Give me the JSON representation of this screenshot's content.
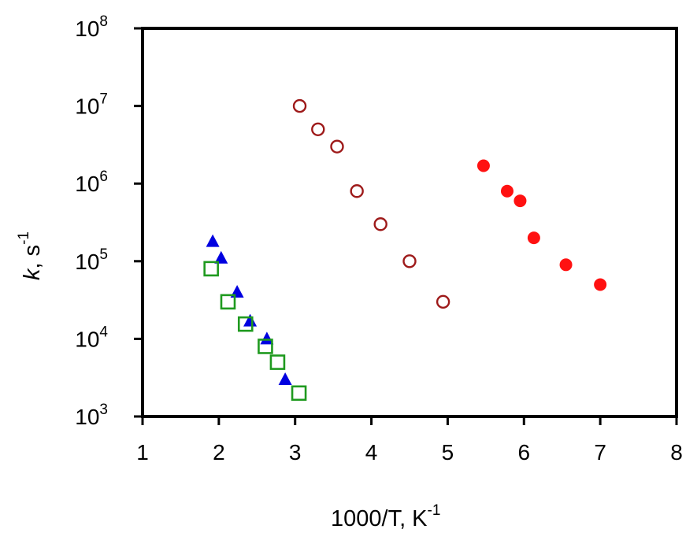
{
  "chart_data": {
    "type": "scatter",
    "title": "",
    "xlabel": "1000/T,  K",
    "xlabel_sup": "-1",
    "ylabel_var": "k",
    "ylabel_rest": ",   s",
    "ylabel_sup": "-1",
    "xlim": [
      1,
      8
    ],
    "ylim": [
      1000,
      100000000
    ],
    "yscale": "log",
    "grid": false,
    "legend": "none",
    "x_ticks": [
      "1",
      "2",
      "3",
      "4",
      "5",
      "6",
      "7",
      "8"
    ],
    "y_ticks": [
      {
        "base": "10",
        "exp": "3"
      },
      {
        "base": "10",
        "exp": "4"
      },
      {
        "base": "10",
        "exp": "5"
      },
      {
        "base": "10",
        "exp": "6"
      },
      {
        "base": "10",
        "exp": "7"
      },
      {
        "base": "10",
        "exp": "8"
      }
    ],
    "series": [
      {
        "marker": "triangle-filled",
        "color": "#0000e0",
        "points": [
          {
            "x": 1.92,
            "y": 180000
          },
          {
            "x": 2.03,
            "y": 110000
          },
          {
            "x": 2.24,
            "y": 40000
          },
          {
            "x": 2.41,
            "y": 17000
          },
          {
            "x": 2.63,
            "y": 10000
          },
          {
            "x": 2.87,
            "y": 3000
          }
        ]
      },
      {
        "marker": "square-open",
        "color": "#1f9a1f",
        "points": [
          {
            "x": 1.9,
            "y": 80000
          },
          {
            "x": 2.12,
            "y": 30000
          },
          {
            "x": 2.35,
            "y": 15500
          },
          {
            "x": 2.61,
            "y": 8000
          },
          {
            "x": 2.77,
            "y": 5000
          },
          {
            "x": 3.05,
            "y": 2000
          }
        ]
      },
      {
        "marker": "circle-open",
        "color": "#9e1a1a",
        "points": [
          {
            "x": 3.06,
            "y": 10000000
          },
          {
            "x": 3.3,
            "y": 5000000
          },
          {
            "x": 3.55,
            "y": 3000000
          },
          {
            "x": 3.81,
            "y": 800000
          },
          {
            "x": 4.12,
            "y": 300000
          },
          {
            "x": 4.5,
            "y": 100000
          },
          {
            "x": 4.94,
            "y": 30000
          }
        ]
      },
      {
        "marker": "circle-filled",
        "color": "#ff1111",
        "points": [
          {
            "x": 5.47,
            "y": 1700000
          },
          {
            "x": 5.78,
            "y": 800000
          },
          {
            "x": 5.95,
            "y": 600000
          },
          {
            "x": 6.13,
            "y": 200000
          },
          {
            "x": 6.55,
            "y": 90000
          },
          {
            "x": 7.0,
            "y": 50000
          }
        ]
      }
    ]
  }
}
